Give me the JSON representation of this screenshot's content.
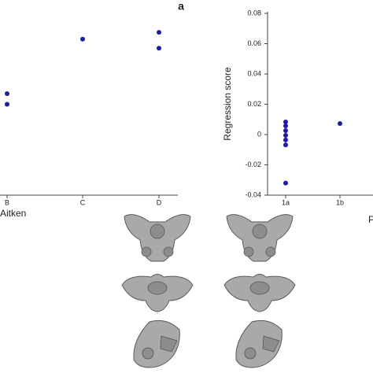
{
  "panel_label": "a",
  "chart_data": [
    {
      "type": "strip",
      "x_label": "Aitken",
      "categories": [
        "B",
        "C",
        "D"
      ],
      "x": [
        "B",
        "B",
        "C",
        "D",
        "D"
      ],
      "values": [
        0.027,
        0.02,
        0.063,
        0.0675,
        0.057
      ],
      "color": "#1c1caa",
      "ylim": [
        -0.04,
        0.08
      ]
    },
    {
      "type": "strip",
      "y_label": "Regression score",
      "x_label": "P",
      "categories": [
        "1a",
        "1b"
      ],
      "x": [
        "1a",
        "1a",
        "1a",
        "1a",
        "1a",
        "1a",
        "1a",
        "1b"
      ],
      "values": [
        0.0083,
        0.0057,
        0.0026,
        -0.0005,
        -0.0036,
        -0.0068,
        -0.032,
        0.0073
      ],
      "color": "#1c1caa",
      "ylim": [
        -0.04,
        0.08
      ],
      "yticks": [
        -0.04,
        -0.02,
        0,
        0.02,
        0.04,
        0.06,
        0.08
      ]
    }
  ]
}
